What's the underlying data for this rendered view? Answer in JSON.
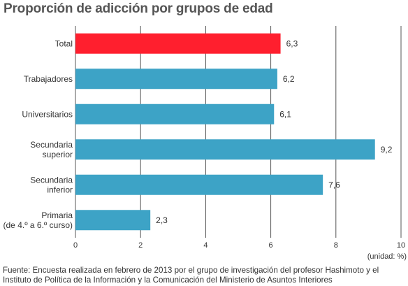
{
  "chart_data": {
    "type": "bar",
    "orientation": "horizontal",
    "title": "Proporción de adicción por grupos de edad",
    "categories": [
      [
        "Total"
      ],
      [
        "Trabajadores"
      ],
      [
        "Universitarios"
      ],
      [
        "Secundaria",
        "superior"
      ],
      [
        "Secundaria",
        "inferior"
      ],
      [
        "Primaria",
        "(de 4.º a 6.º curso)"
      ]
    ],
    "values": [
      6.3,
      6.2,
      6.1,
      9.2,
      7.6,
      2.3
    ],
    "value_labels": [
      "6,3",
      "6,2",
      "6,1",
      "9,2",
      "7,6",
      "2,3"
    ],
    "bar_colors": [
      "#ff1f2e",
      "#3da3c6",
      "#3da3c6",
      "#3da3c6",
      "#3da3c6",
      "#3da3c6"
    ],
    "xlim": [
      0,
      10
    ],
    "xticks": [
      0,
      2,
      4,
      6,
      8,
      10
    ],
    "grid": true,
    "unit": "(unidad: %)"
  },
  "source": "Fuente: Encuesta realizada en febrero de 2013 por el grupo de investigación del profesor Hashimoto y el Instituto de Política de la Información y la Comunicación del Ministerio de Asuntos Interiores"
}
